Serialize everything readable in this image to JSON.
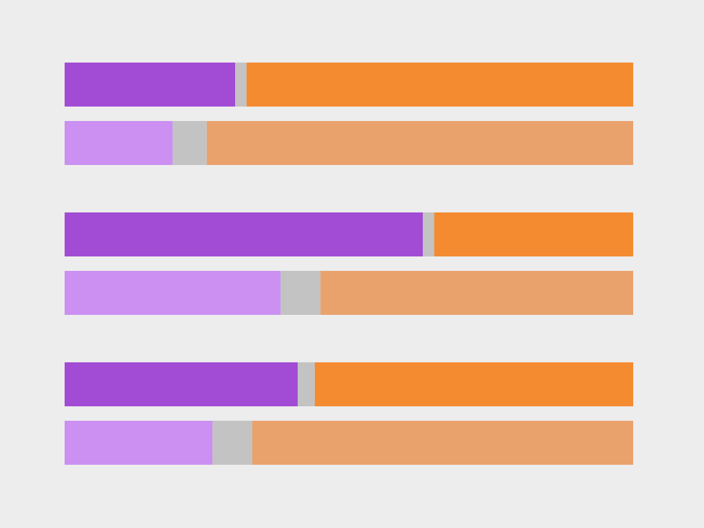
{
  "chart_data": {
    "type": "bar",
    "stacked": true,
    "normalized": true,
    "orientation": "horizontal",
    "groups": [
      {
        "bars": [
          {
            "style": "dark",
            "values": [
              0.3,
              0.02,
              0.68
            ]
          },
          {
            "style": "light",
            "values": [
              0.19,
              0.06,
              0.75
            ]
          }
        ]
      },
      {
        "bars": [
          {
            "style": "dark",
            "values": [
              0.63,
              0.02,
              0.35
            ]
          },
          {
            "style": "light",
            "values": [
              0.38,
              0.07,
              0.55
            ]
          }
        ]
      },
      {
        "bars": [
          {
            "style": "dark",
            "values": [
              0.41,
              0.03,
              0.56
            ]
          },
          {
            "style": "light",
            "values": [
              0.26,
              0.07,
              0.67
            ]
          }
        ]
      }
    ],
    "segment_order": [
      "purple",
      "gray",
      "orange"
    ],
    "colors": {
      "dark": [
        "#a24bd4",
        "#c3c3c3",
        "#f58b31"
      ],
      "light": [
        "#cb90f1",
        "#c3c3c3",
        "#eaa26d"
      ]
    },
    "background": "#ededed",
    "grid": false,
    "legend": "none",
    "xlim": [
      0,
      1
    ]
  }
}
